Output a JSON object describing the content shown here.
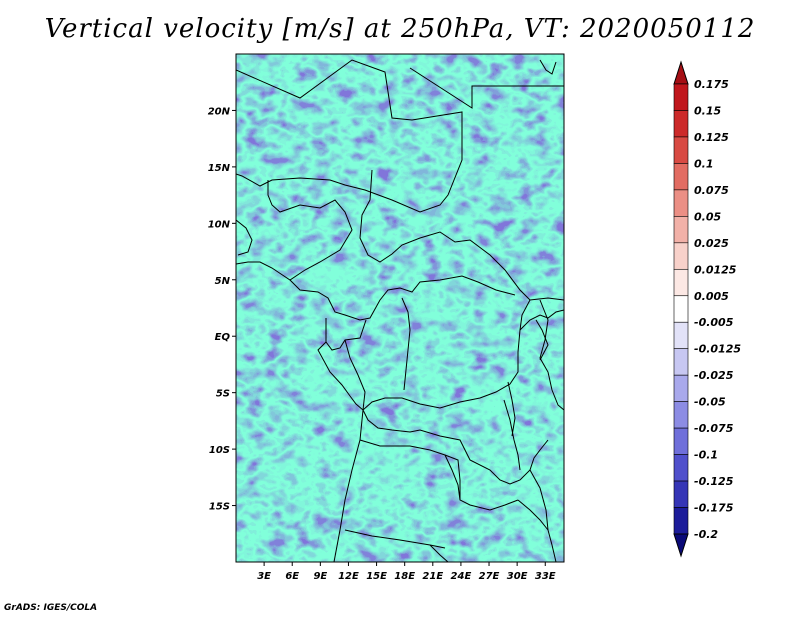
{
  "title": "Vertical velocity [m/s] at 250hPa, VT: 2020050112",
  "credit": "GrADS: IGES/COLA",
  "map": {
    "lat_labels": [
      "20N",
      "15N",
      "10N",
      "5N",
      "EQ",
      "5S",
      "10S",
      "15S"
    ],
    "lat_values": [
      20,
      15,
      10,
      5,
      0,
      -5,
      -10,
      -15
    ],
    "lon_labels": [
      "3E",
      "6E",
      "9E",
      "12E",
      "15E",
      "18E",
      "21E",
      "24E",
      "27E",
      "30E",
      "33E"
    ],
    "lon_values": [
      3,
      6,
      9,
      12,
      15,
      18,
      21,
      24,
      27,
      30,
      33
    ],
    "lon_range": [
      0,
      35
    ],
    "lat_range": [
      -20,
      25
    ]
  },
  "colorbar": {
    "labels": [
      "0.175",
      "0.15",
      "0.125",
      "0.1",
      "0.075",
      "0.05",
      "0.025",
      "0.0125",
      "0.005",
      "-0.005",
      "-0.0125",
      "-0.025",
      "-0.05",
      "-0.075",
      "-0.1",
      "-0.125",
      "-0.175",
      "-0.2"
    ],
    "colors": [
      "#a50f15",
      "#c0171d",
      "#cc2a2a",
      "#d84a43",
      "#e26c62",
      "#eb8f85",
      "#f2b1a8",
      "#f8d1ca",
      "#fce8e4",
      "#ffffff",
      "#e2e2f8",
      "#c7c7f2",
      "#a9a9ec",
      "#8c8ce4",
      "#6f6fda",
      "#5050cc",
      "#3535b6",
      "#1c1c9a",
      "#0a0a78"
    ]
  }
}
